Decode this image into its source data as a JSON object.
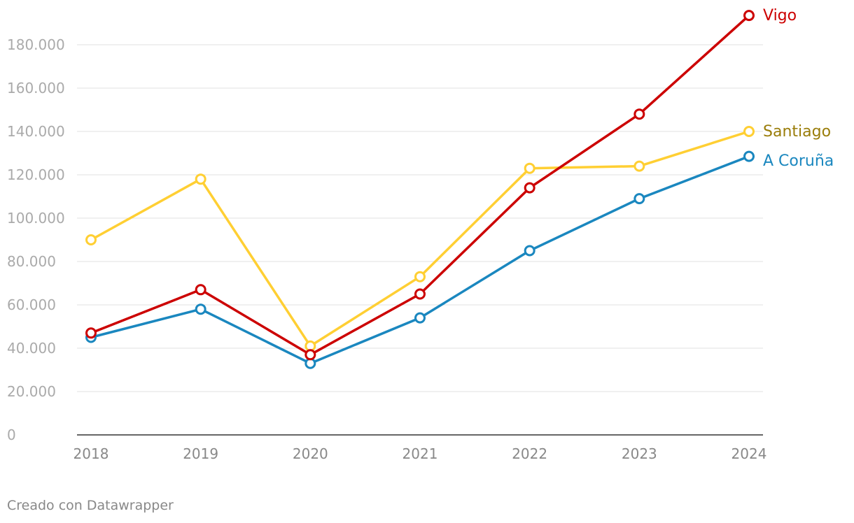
{
  "chart_data": {
    "type": "line",
    "title": "",
    "xlabel": "",
    "ylabel": "",
    "x": [
      "2018",
      "2019",
      "2020",
      "2021",
      "2022",
      "2023",
      "2024"
    ],
    "ylim": [
      0,
      190000
    ],
    "yticks": [
      0,
      20000,
      40000,
      60000,
      80000,
      100000,
      120000,
      140000,
      160000,
      180000
    ],
    "ytick_labels": [
      "0",
      "20.000",
      "40.000",
      "60.000",
      "80.000",
      "100.000",
      "120.000",
      "140.000",
      "160.000",
      "180.000"
    ],
    "grid": true,
    "legend": "direct labels at line ends",
    "series": [
      {
        "name": "Santiago",
        "color": "#ffcf33",
        "label_color": "#9a7d0a",
        "values": [
          90000,
          118000,
          41000,
          73000,
          123000,
          124000,
          140000
        ]
      },
      {
        "name": "A Coruña",
        "color": "#1a87bf",
        "label_color": "#1a87bf",
        "values": [
          45000,
          58000,
          33000,
          54000,
          85000,
          109000,
          128500
        ]
      },
      {
        "name": "Vigo",
        "color": "#cc0000",
        "label_color": "#cc0000",
        "values": [
          47000,
          67000,
          37000,
          65000,
          114000,
          148000,
          193500
        ]
      }
    ]
  },
  "footer": {
    "credit": "Creado con Datawrapper"
  }
}
